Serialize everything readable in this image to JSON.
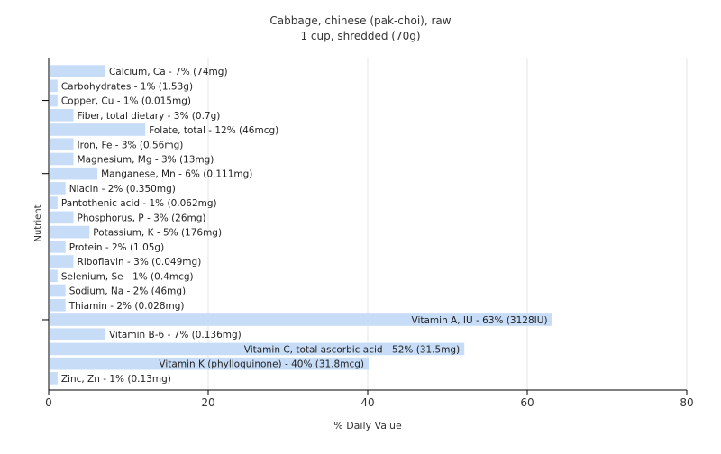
{
  "chart_data": {
    "type": "bar",
    "orientation": "horizontal",
    "title": "Cabbage, chinese (pak-choi), raw",
    "subtitle": "1 cup, shredded (70g)",
    "xlabel": "% Daily Value",
    "ylabel": "Nutrient",
    "xlim": [
      0,
      80
    ],
    "xticks": [
      0,
      20,
      40,
      60,
      80
    ],
    "grid": true,
    "bar_color": "#c6dcf7",
    "categories": [
      "Calcium, Ca",
      "Carbohydrates",
      "Copper, Cu",
      "Fiber, total dietary",
      "Folate, total",
      "Iron, Fe",
      "Magnesium, Mg",
      "Manganese, Mn",
      "Niacin",
      "Pantothenic acid",
      "Phosphorus, P",
      "Potassium, K",
      "Protein",
      "Riboflavin",
      "Selenium, Se",
      "Sodium, Na",
      "Thiamin",
      "Vitamin A, IU",
      "Vitamin B-6",
      "Vitamin C, total ascorbic acid",
      "Vitamin K (phylloquinone)",
      "Zinc, Zn"
    ],
    "values": [
      7,
      1,
      1,
      3,
      12,
      3,
      3,
      6,
      2,
      1,
      3,
      5,
      2,
      3,
      1,
      2,
      2,
      63,
      7,
      52,
      40,
      1
    ],
    "data_labels": [
      "Calcium, Ca - 7% (74mg)",
      "Carbohydrates - 1% (1.53g)",
      "Copper, Cu - 1% (0.015mg)",
      "Fiber, total dietary - 3% (0.7g)",
      "Folate, total - 12% (46mcg)",
      "Iron, Fe - 3% (0.56mg)",
      "Magnesium, Mg - 3% (13mg)",
      "Manganese, Mn - 6% (0.111mg)",
      "Niacin - 2% (0.350mg)",
      "Pantothenic acid - 1% (0.062mg)",
      "Phosphorus, P - 3% (26mg)",
      "Potassium, K - 5% (176mg)",
      "Protein - 2% (1.05g)",
      "Riboflavin - 3% (0.049mg)",
      "Selenium, Se - 1% (0.4mcg)",
      "Sodium, Na - 2% (46mg)",
      "Thiamin - 2% (0.028mg)",
      "Vitamin A, IU - 63% (3128IU)",
      "Vitamin B-6 - 7% (0.136mg)",
      "Vitamin C, total ascorbic acid - 52% (31.5mg)",
      "Vitamin K (phylloquinone) - 40% (31.8mcg)",
      "Zinc, Zn - 1% (0.13mg)"
    ]
  }
}
